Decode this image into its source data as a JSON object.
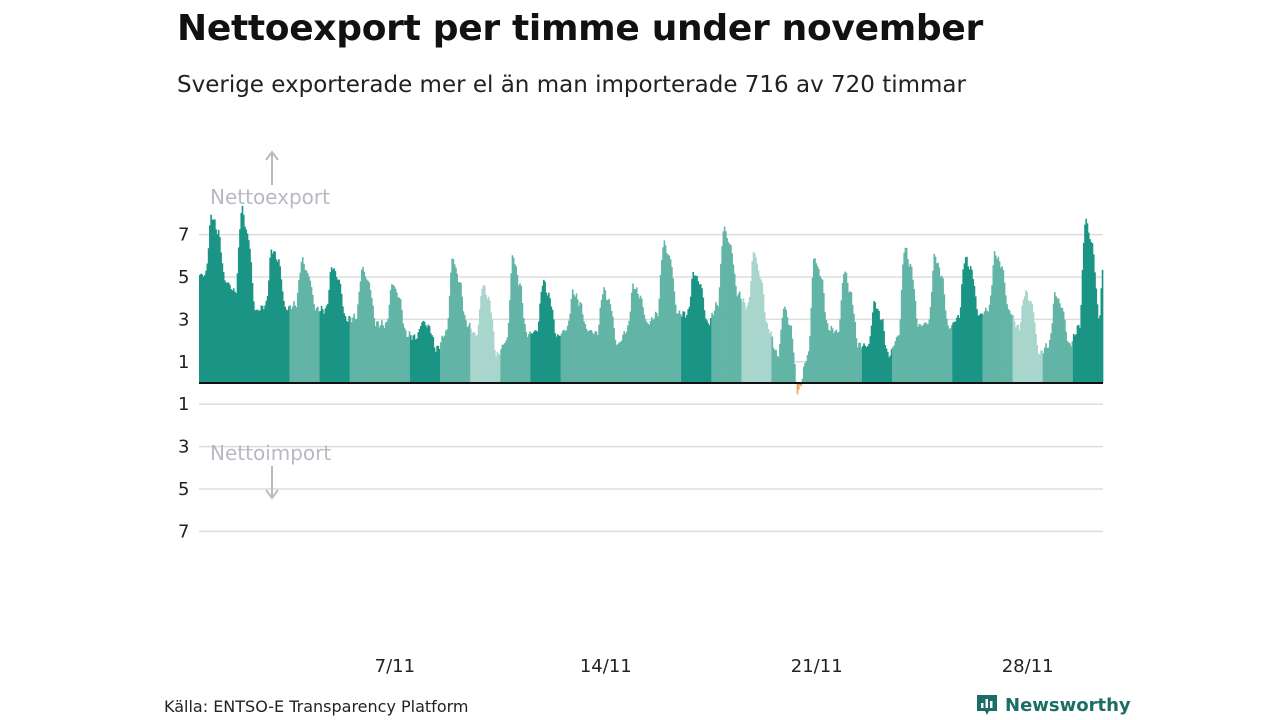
{
  "title": "Nettoexport per timme under november",
  "subtitle": "Sverige exporterade mer el än man importerade 716 av 720 timmar",
  "source": "Källa: ENTSO-E Transparency Platform",
  "brand": {
    "name": "Newsworthy",
    "icon": "newsworthy-logo-icon"
  },
  "colors": {
    "export_dark": "#1a9484",
    "export_mid": "#62b5a6",
    "export_light": "#a8d5cc",
    "import": "#f0a35e",
    "grid": "#dddddd",
    "baseline": "#111111",
    "direction_label": "#b9b9c4"
  },
  "chart_data": {
    "type": "bar",
    "title": "Nettoexport per timme under november",
    "subtitle": "Sverige exporterade mer el än man importerade 716 av 720 timmar",
    "xlabel": "",
    "ylabel": "",
    "x_unit": "hour",
    "x_range": [
      "2023-11-01",
      "2023-11-30"
    ],
    "ylim": [
      -7.5,
      8.2
    ],
    "grid": true,
    "positive_label": "Nettoexport",
    "negative_label": "Nettoimport",
    "yticks": [
      {
        "value": 7,
        "label": "7"
      },
      {
        "value": 5,
        "label": "5"
      },
      {
        "value": 3,
        "label": "3"
      },
      {
        "value": 1,
        "label": "1"
      },
      {
        "value": -1,
        "label": "1"
      },
      {
        "value": -3,
        "label": "3"
      },
      {
        "value": -5,
        "label": "5"
      },
      {
        "value": -7,
        "label": "7"
      }
    ],
    "xticks": [
      {
        "day": 7,
        "label": "7/11"
      },
      {
        "day": 14,
        "label": "14/11"
      },
      {
        "day": 21,
        "label": "21/11"
      },
      {
        "day": 28,
        "label": "28/11"
      }
    ],
    "shade_by_day": [
      2,
      2,
      2,
      1,
      2,
      1,
      1,
      2,
      1,
      0,
      1,
      2,
      1,
      1,
      1,
      1,
      2,
      1,
      0,
      1,
      1,
      1,
      2,
      1,
      1,
      2,
      1,
      0,
      1,
      2
    ],
    "daily_values": [
      {
        "day": 1,
        "mean": 6.4,
        "min": 4.8,
        "max": 7.9
      },
      {
        "day": 2,
        "mean": 5.6,
        "min": 3.4,
        "max": 8.2
      },
      {
        "day": 3,
        "mean": 5.3,
        "min": 3.5,
        "max": 6.3
      },
      {
        "day": 4,
        "mean": 4.4,
        "min": 3.5,
        "max": 5.8
      },
      {
        "day": 5,
        "mean": 4.3,
        "min": 3.0,
        "max": 5.5
      },
      {
        "day": 6,
        "mean": 4.1,
        "min": 2.8,
        "max": 5.4
      },
      {
        "day": 7,
        "mean": 3.5,
        "min": 2.3,
        "max": 4.7
      },
      {
        "day": 8,
        "mean": 2.4,
        "min": 1.6,
        "max": 2.9
      },
      {
        "day": 9,
        "mean": 3.8,
        "min": 2.8,
        "max": 5.9
      },
      {
        "day": 10,
        "mean": 3.2,
        "min": 1.3,
        "max": 4.6
      },
      {
        "day": 11,
        "mean": 3.5,
        "min": 2.3,
        "max": 6.0
      },
      {
        "day": 12,
        "mean": 3.3,
        "min": 2.2,
        "max": 4.8
      },
      {
        "day": 13,
        "mean": 3.3,
        "min": 2.5,
        "max": 4.3
      },
      {
        "day": 14,
        "mean": 3.2,
        "min": 1.8,
        "max": 4.4
      },
      {
        "day": 15,
        "mean": 3.6,
        "min": 2.8,
        "max": 4.6
      },
      {
        "day": 16,
        "mean": 5.2,
        "min": 3.3,
        "max": 6.6
      },
      {
        "day": 17,
        "mean": 4.2,
        "min": 2.8,
        "max": 5.2
      },
      {
        "day": 18,
        "mean": 5.7,
        "min": 4.2,
        "max": 7.3
      },
      {
        "day": 19,
        "mean": 3.8,
        "min": 2.6,
        "max": 6.2
      },
      {
        "day": 20,
        "mean": 1.7,
        "min": -0.4,
        "max": 3.6
      },
      {
        "day": 21,
        "mean": 4.3,
        "min": 2.6,
        "max": 5.9
      },
      {
        "day": 22,
        "mean": 3.1,
        "min": 1.8,
        "max": 5.3
      },
      {
        "day": 23,
        "mean": 2.4,
        "min": 1.3,
        "max": 3.8
      },
      {
        "day": 24,
        "mean": 4.5,
        "min": 2.7,
        "max": 6.4
      },
      {
        "day": 25,
        "mean": 4.3,
        "min": 2.6,
        "max": 6.0
      },
      {
        "day": 26,
        "mean": 4.8,
        "min": 3.2,
        "max": 5.9
      },
      {
        "day": 27,
        "mean": 5.0,
        "min": 3.4,
        "max": 6.1
      },
      {
        "day": 28,
        "mean": 3.2,
        "min": 1.4,
        "max": 4.3
      },
      {
        "day": 29,
        "mean": 3.0,
        "min": 1.8,
        "max": 4.2
      },
      {
        "day": 30,
        "mean": 5.5,
        "min": 3.1,
        "max": 7.7
      }
    ],
    "hours_total": 720,
    "hours_net_export": 716,
    "hours_net_import": 4
  }
}
